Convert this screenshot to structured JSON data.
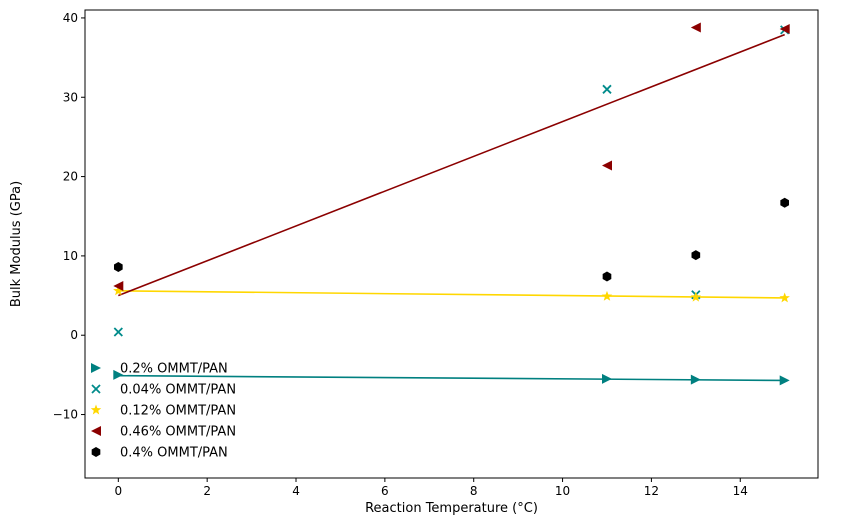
{
  "chart_data": {
    "type": "scatter",
    "title": "",
    "xlabel": "Reaction Temperature (°C)",
    "ylabel": "Bulk Modulus (GPa)",
    "xlim": [
      -0.75,
      15.75
    ],
    "ylim": [
      -18,
      41
    ],
    "xticks": [
      0,
      2,
      4,
      6,
      8,
      10,
      12,
      14
    ],
    "xtick_labels": [
      "0",
      "2",
      "4",
      "6",
      "8",
      "10",
      "12",
      "14"
    ],
    "yticks": [
      -10,
      0,
      10,
      20,
      30,
      40
    ],
    "ytick_labels": [
      "−10",
      "0",
      "10",
      "20",
      "30",
      "40"
    ],
    "grid": false,
    "legend_position": "lower-left",
    "series": [
      {
        "name": "0.2% OMMT/PAN",
        "color": "#008080",
        "marker": "triangle-right",
        "points": [
          [
            0,
            -5.0
          ],
          [
            11,
            -5.5
          ],
          [
            13,
            -5.6
          ],
          [
            15,
            -5.7
          ]
        ],
        "fit_line": [
          [
            0,
            -5.1
          ],
          [
            15,
            -5.7
          ]
        ]
      },
      {
        "name": "0.04% OMMT/PAN",
        "color": "#008B8B",
        "marker": "x",
        "points": [
          [
            0,
            0.4
          ],
          [
            11,
            31.0
          ],
          [
            13,
            5.1
          ],
          [
            15,
            38.5
          ]
        ]
      },
      {
        "name": "0.12% OMMT/PAN",
        "color": "#FFD700",
        "marker": "star",
        "points": [
          [
            0,
            5.6
          ],
          [
            11,
            4.9
          ],
          [
            13,
            4.8
          ],
          [
            15,
            4.7
          ]
        ],
        "fit_line": [
          [
            0,
            5.6
          ],
          [
            15,
            4.7
          ]
        ]
      },
      {
        "name": "0.46% OMMT/PAN",
        "color": "#8B0000",
        "marker": "triangle-left",
        "points": [
          [
            0,
            6.2
          ],
          [
            11,
            21.4
          ],
          [
            13,
            38.8
          ],
          [
            15,
            38.6
          ]
        ],
        "fit_line": [
          [
            0,
            5.0
          ],
          [
            15,
            37.9
          ]
        ]
      },
      {
        "name": "0.4% OMMT/PAN",
        "color": "#000000",
        "marker": "hexagon",
        "points": [
          [
            0,
            8.6
          ],
          [
            11,
            7.4
          ],
          [
            13,
            10.1
          ],
          [
            15,
            16.7
          ]
        ]
      }
    ]
  }
}
